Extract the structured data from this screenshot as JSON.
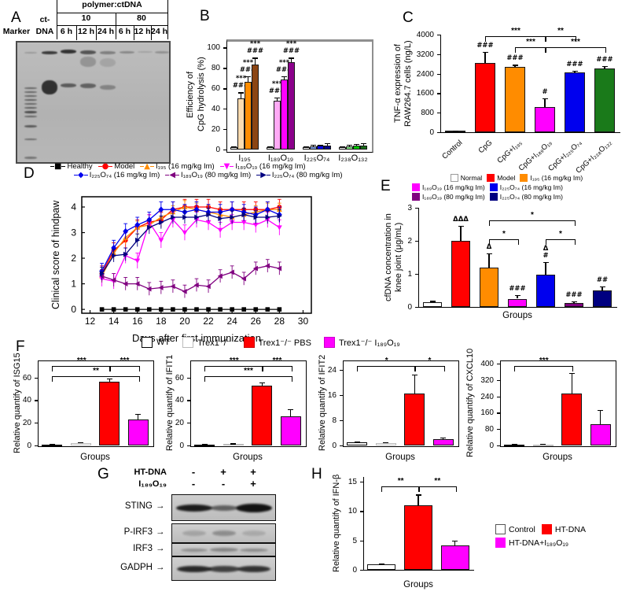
{
  "panels": {
    "A": "A",
    "B": "B",
    "C": "C",
    "D": "D",
    "E": "E",
    "F": "F",
    "G": "G",
    "H": "H"
  },
  "panelA": {
    "header_title": "polymer:ctDNA",
    "ratio_10": "10",
    "ratio_80": "80",
    "time_labels": [
      "6 h",
      "12 h",
      "24 h",
      "6 h",
      "12 h",
      "24 h"
    ],
    "marker_label": "Marker",
    "ct_top": "ct-",
    "ct_bottom": "DNA",
    "gel_lanes": [
      {
        "x": 17,
        "w": 16,
        "bands": [
          [
            12,
            2,
            0.2
          ],
          [
            57,
            2,
            0.5
          ],
          [
            62,
            2,
            0.5
          ],
          [
            67,
            2,
            0.5
          ],
          [
            72,
            2,
            0.55
          ],
          [
            77,
            2,
            0.5
          ],
          [
            82,
            2,
            0.55
          ],
          [
            87,
            3,
            0.65
          ],
          [
            93,
            2,
            0.5
          ],
          [
            105,
            3,
            0.55
          ],
          [
            122,
            2,
            0.45
          ],
          [
            145,
            3,
            0.4
          ]
        ]
      },
      {
        "x": 41,
        "w": 20,
        "bands": [
          [
            11,
            4,
            0.75
          ],
          [
            48,
            18,
            0.8
          ]
        ]
      },
      {
        "x": 65,
        "w": 20,
        "bands": [
          [
            9,
            5,
            0.8
          ],
          [
            52,
            5,
            0.55
          ]
        ]
      },
      {
        "x": 90,
        "w": 20,
        "bands": [
          [
            10,
            5,
            0.6
          ],
          [
            18,
            13,
            0.22
          ],
          [
            52,
            6,
            0.5
          ]
        ]
      },
      {
        "x": 115,
        "w": 20,
        "bands": [
          [
            11,
            4,
            0.35
          ],
          [
            20,
            11,
            0.12
          ],
          [
            54,
            6,
            0.3
          ]
        ]
      },
      {
        "x": 139,
        "w": 19,
        "bands": [
          [
            11,
            3,
            0.3
          ]
        ]
      },
      {
        "x": 162,
        "w": 19,
        "bands": [
          [
            11,
            2,
            0.15
          ]
        ]
      },
      {
        "x": 184,
        "w": 18,
        "bands": [
          [
            11,
            3,
            0.25
          ]
        ]
      }
    ]
  },
  "panelF": {
    "legend": [
      {
        "label": "WT",
        "color": "#ffffff",
        "border": "#000000"
      },
      {
        "label": "Trex1⁺/⁻",
        "color": "#ffffff",
        "border": "#bbbbbb"
      },
      {
        "label": "Trex1⁻/⁻ PBS",
        "color": "#ff0000",
        "border": "#cc0000"
      },
      {
        "label": "Trex1⁻/⁻ I₁₈₉O₁₉",
        "color": "#ff00ff",
        "border": "#cc00cc"
      }
    ]
  },
  "panelG": {
    "row1_label": "HT-DNA",
    "row1_values": [
      "-",
      "+",
      "+"
    ],
    "row2_label": "I₁₈₉O₁₉",
    "row2_values": [
      "-",
      "-",
      "+"
    ],
    "arrow": "→",
    "blots": [
      {
        "label": "STING",
        "bands": [
          {
            "lane": 0,
            "i": 0.92,
            "w": 46,
            "h": 9
          },
          {
            "lane": 1,
            "i": 0.55,
            "w": 34,
            "h": 7
          },
          {
            "lane": 2,
            "i": 0.97,
            "w": 46,
            "h": 11
          }
        ]
      },
      {
        "label": "P-IRF3",
        "bands": [
          {
            "lane": 0,
            "i": 0.18,
            "w": 30,
            "h": 7
          },
          {
            "lane": 1,
            "i": 0.3,
            "w": 30,
            "h": 7
          },
          {
            "lane": 2,
            "i": 0.15,
            "w": 30,
            "h": 7
          }
        ]
      },
      {
        "label": "IRF3",
        "bands": [
          {
            "lane": 0,
            "i": 0.3,
            "w": 34,
            "h": 4
          },
          {
            "lane": 1,
            "i": 0.35,
            "w": 36,
            "h": 5
          },
          {
            "lane": 2,
            "i": 0.32,
            "w": 36,
            "h": 4
          }
        ]
      },
      {
        "label": "GADPH",
        "bands": [
          {
            "lane": 0,
            "i": 0.85,
            "w": 44,
            "h": 8
          },
          {
            "lane": 1,
            "i": 0.72,
            "w": 40,
            "h": 8
          },
          {
            "lane": 2,
            "i": 0.8,
            "w": 42,
            "h": 8
          }
        ]
      }
    ]
  },
  "chart_data": [
    {
      "id": "B",
      "type": "bar",
      "grouped": true,
      "ylabel_lines": [
        "Efficiency of",
        "CpG hydrolysis (%)"
      ],
      "yticks": [
        0,
        20,
        40,
        60,
        80,
        100
      ],
      "ymax": 108,
      "categories": [
        "I₁₉₅",
        "I₁₈₉O₁₉",
        "I₂₂₅O₇₄",
        "I₂₃₈O₁₃₂"
      ],
      "values": [
        [
          2,
          50,
          66,
          83
        ],
        [
          2,
          48,
          69,
          86
        ],
        [
          2,
          3,
          3.5,
          4
        ],
        [
          2,
          3,
          3.5,
          4
        ]
      ],
      "errors": [
        [
          1,
          6,
          6,
          7
        ],
        [
          1,
          3,
          3,
          4
        ],
        [
          1,
          1.5,
          1.5,
          2
        ],
        [
          1,
          1.5,
          2,
          2
        ]
      ],
      "colors": [
        [
          "#ffffff",
          "#fcdcb0",
          "#ff8c00",
          "#8b4513"
        ],
        [
          "#ffffff",
          "#ffaaf5",
          "#ff00ff",
          "#8b008b"
        ],
        [
          "#ffffff",
          "#7d9ce0",
          "#0000ee",
          "#00008b"
        ],
        [
          "#ffffff",
          "#86e886",
          "#00c300",
          "#1a6b1a"
        ]
      ],
      "annotations": [
        [
          "",
          "***|###",
          "***|###",
          "***|###"
        ],
        [
          "",
          "***|###",
          "***|###",
          "***|###"
        ],
        [
          "",
          "",
          "",
          ""
        ],
        [
          "",
          "",
          "",
          ""
        ]
      ]
    },
    {
      "id": "C",
      "type": "bar",
      "ylabel_lines": [
        "TNF-α expression of",
        "RAW264.7 cells (ng/L)"
      ],
      "yticks": [
        0,
        800,
        1600,
        2400,
        3200,
        4000
      ],
      "ymax": 4000,
      "categories": [
        "Control",
        "CpG",
        "CpG+I₁₉₅",
        "CpG+I₁₈₉O₁₉",
        "CpG+I₂₂₅O₇₄",
        "CpG+I₂₃₈O₁₃₂"
      ],
      "values": [
        60,
        2850,
        2670,
        1020,
        2450,
        2620
      ],
      "errors": [
        20,
        450,
        90,
        380,
        60,
        80
      ],
      "colors": [
        "#d8d8d8",
        "#ff0000",
        "#ff8c00",
        "#ff00ff",
        "#0000ee",
        "#1a7a1a"
      ],
      "annotations": [
        "",
        "###",
        "###",
        "#",
        "###",
        "###"
      ],
      "brackets": [
        {
          "from": 1,
          "to": 3,
          "label": "***",
          "level": 2
        },
        {
          "from": 3,
          "to": 4,
          "label": "**",
          "level": 2
        },
        {
          "from": 2,
          "to": 3,
          "label": "***",
          "level": 1
        },
        {
          "from": 3,
          "to": 5,
          "label": "***",
          "level": 1
        }
      ]
    },
    {
      "id": "D",
      "type": "line",
      "xlabel": "Days after first immunization",
      "ylabel": "Clinical score of hindpaw",
      "xticks": [
        12,
        14,
        16,
        18,
        20,
        22,
        24,
        26,
        28,
        30
      ],
      "yticks": [
        0,
        1,
        2,
        3,
        4
      ],
      "xlim": [
        11.3,
        30.7
      ],
      "ylim": [
        -0.15,
        4.4
      ],
      "x": [
        13,
        14,
        15,
        16,
        17,
        18,
        19,
        20,
        21,
        22,
        23,
        24,
        25,
        26,
        27,
        28
      ],
      "series": [
        {
          "name": "Healthy",
          "color": "#000000",
          "marker": "square",
          "err": 0.04,
          "y": [
            0,
            0,
            0,
            0,
            0,
            0,
            0,
            0,
            0,
            0,
            0,
            0,
            0,
            0,
            0,
            0
          ]
        },
        {
          "name": "Model",
          "color": "#ff0000",
          "marker": "circle",
          "err": 0.3,
          "y": [
            1.4,
            2.3,
            2.7,
            3.2,
            3.4,
            3.5,
            3.9,
            4,
            4,
            4,
            3.9,
            3.9,
            3.9,
            3.9,
            3.9,
            4
          ]
        },
        {
          "name": "I₁₉₅ (16 mg/kg Im)",
          "color": "#ff8c00",
          "marker": "triangle-up",
          "err": 0.25,
          "y": [
            1.3,
            2.2,
            2.8,
            3.2,
            3.3,
            3.6,
            3.8,
            4,
            3.9,
            3.8,
            3.7,
            3.6,
            3.7,
            3.8,
            3.9,
            3.9
          ]
        },
        {
          "name": "I₁₈₉O₁₉ (16 mg/kg Im)",
          "color": "#ff00ff",
          "marker": "triangle-down",
          "err": 0.3,
          "y": [
            1.2,
            1.1,
            2.1,
            1.9,
            3.4,
            2.7,
            3.5,
            3,
            3.5,
            3.4,
            3.1,
            3.4,
            3.4,
            3.3,
            3.5,
            3.2
          ]
        },
        {
          "name": "I₂₂₅O₇₄ (16 mg/kg Im)",
          "color": "#0000ee",
          "marker": "diamond",
          "err": 0.3,
          "y": [
            1.5,
            2.4,
            3.05,
            3.3,
            3.5,
            3.9,
            3.9,
            3.8,
            3.9,
            3.8,
            3.8,
            3.9,
            3.8,
            3.7,
            3.9,
            3.7
          ]
        },
        {
          "name": "I₁₈₉O₁₉ (80 mg/kg Im)",
          "color": "#800080",
          "marker": "triangle-left",
          "err": 0.25,
          "y": [
            1.3,
            1.15,
            1,
            1,
            0.8,
            0.85,
            0.9,
            0.7,
            0.95,
            0.9,
            1.3,
            1.45,
            1.2,
            1.6,
            1.7,
            1.6
          ]
        },
        {
          "name": "I₂₂₅O₇₄ (80 mg/kg Im)",
          "color": "#000080",
          "marker": "triangle-right",
          "err": 0.25,
          "y": [
            1.4,
            2.1,
            2.15,
            2.7,
            3.2,
            3.4,
            3.6,
            3.6,
            3.6,
            3.7,
            3.55,
            3.6,
            3.7,
            3.6,
            3.6,
            3.65
          ]
        }
      ],
      "legend_rows": [
        [
          0,
          1,
          2,
          3
        ],
        [
          4,
          5,
          6
        ]
      ]
    },
    {
      "id": "E",
      "type": "bar",
      "ylabel_lines": [
        "cfDNA concentration in",
        "knee joint (μg/mL)"
      ],
      "xlabel": "Groups",
      "yticks": [
        0,
        1,
        2,
        3
      ],
      "ymax": 3,
      "values": [
        0.15,
        2,
        1.2,
        0.25,
        0.97,
        0.13,
        0.5
      ],
      "errors": [
        0.03,
        0.45,
        0.42,
        0.1,
        0.38,
        0.03,
        0.12
      ],
      "colors": [
        "#ffffff",
        "#ff0000",
        "#ff8c00",
        "#ff00ff",
        "#0000ee",
        "#800080",
        "#000080"
      ],
      "annotations": [
        "",
        "ΔΔΔ",
        "Δ",
        "###",
        "Δ|#",
        "###",
        "##"
      ],
      "brackets": [
        {
          "from": 2,
          "to": 3,
          "label": "*",
          "level": 1
        },
        {
          "from": 4,
          "to": 5,
          "label": "*",
          "level": 1
        },
        {
          "from": 2,
          "to": 5,
          "label": "*",
          "level": 2
        }
      ],
      "legend_rows": [
        [
          "Normal",
          "Model",
          "I₁₉₅ (16 mg/kg Im)"
        ],
        [
          "I₁₈₉O₁₉ (16 mg/kg Im)",
          "I₂₂₅O₇₄ (16 mg/kg  Im)"
        ],
        [
          "I₁₈₉O₁₉ (80 mg/kg Im)",
          "I₂₂₅O₇₄ (80 mg/kg Im)"
        ]
      ],
      "legend_colors": [
        [
          "#ffffff",
          "#ff0000",
          "#ff8c00"
        ],
        [
          "#ff00ff",
          "#0000ee"
        ],
        [
          "#800080",
          "#000080"
        ]
      ]
    },
    {
      "id": "F1",
      "type": "bar",
      "ylabel": "Relative quantify of ISG15",
      "xlabel": "Groups",
      "yticks": [
        0,
        20,
        40,
        60
      ],
      "ymax": 75,
      "values": [
        1,
        2,
        56,
        23
      ],
      "errors": [
        0.3,
        0.8,
        3,
        5
      ],
      "colors": [
        "#ffffff",
        "#ffffff",
        "#ff0000",
        "#ff00ff"
      ],
      "border_colors": [
        "#000000",
        "#bbbbbb",
        "#111111",
        "#111111"
      ],
      "brackets": [
        {
          "from": 0,
          "to": 2,
          "label": "***",
          "level": 2
        },
        {
          "from": 2,
          "to": 3,
          "label": "***",
          "level": 2
        },
        {
          "from": 0,
          "to": 3,
          "label": "**",
          "level": 1
        }
      ]
    },
    {
      "id": "F2",
      "type": "bar",
      "ylabel": "Relative quantify of IFIT1",
      "xlabel": "Groups",
      "yticks": [
        0,
        20,
        40,
        60
      ],
      "ymax": 75,
      "values": [
        1,
        1.5,
        53,
        26
      ],
      "errors": [
        0.2,
        0.3,
        2.5,
        6
      ],
      "colors": [
        "#ffffff",
        "#ffffff",
        "#ff0000",
        "#ff00ff"
      ],
      "border_colors": [
        "#000000",
        "#bbbbbb",
        "#111111",
        "#111111"
      ],
      "brackets": [
        {
          "from": 0,
          "to": 2,
          "label": "***",
          "level": 2
        },
        {
          "from": 2,
          "to": 3,
          "label": "***",
          "level": 2
        },
        {
          "from": 0,
          "to": 3,
          "label": "***",
          "level": 1
        }
      ]
    },
    {
      "id": "F3",
      "type": "bar",
      "ylabel": "Relative quantify of IFIT2",
      "xlabel": "Groups",
      "yticks": [
        0,
        8,
        16,
        24
      ],
      "ymax": 27,
      "values": [
        1,
        0.8,
        16.5,
        2
      ],
      "errors": [
        0.3,
        0.2,
        6,
        0.6
      ],
      "colors": [
        "#ffffff",
        "#ffffff",
        "#ff0000",
        "#ff00ff"
      ],
      "border_colors": [
        "#000000",
        "#bbbbbb",
        "#111111",
        "#111111"
      ],
      "brackets": [
        {
          "from": 0,
          "to": 2,
          "label": "*",
          "level": 2
        },
        {
          "from": 2,
          "to": 3,
          "label": "*",
          "level": 2
        }
      ]
    },
    {
      "id": "F4",
      "type": "bar",
      "ylabel": "Relative quantify of CXCL10",
      "xlabel": "Groups",
      "yticks": [
        0,
        80,
        160,
        240,
        320,
        400
      ],
      "ymax": 415,
      "values": [
        2,
        3,
        252,
        105
      ],
      "errors": [
        1,
        1,
        103,
        68
      ],
      "colors": [
        "#ffffff",
        "#ffffff",
        "#ff0000",
        "#ff00ff"
      ],
      "border_colors": [
        "#000000",
        "#bbbbbb",
        "#111111",
        "#111111"
      ],
      "brackets": [
        {
          "from": 0,
          "to": 2,
          "label": "***",
          "level": 2
        }
      ]
    },
    {
      "id": "H",
      "type": "bar",
      "ylabel": "Relative quantify of IFN-β",
      "xlabel": "Groups",
      "yticks": [
        0,
        5,
        10,
        15
      ],
      "ymax": 15.8,
      "values": [
        1,
        11,
        4.2
      ],
      "errors": [
        0.12,
        1.8,
        0.8
      ],
      "colors": [
        "#ffffff",
        "#ff0000",
        "#ff00ff"
      ],
      "brackets": [
        {
          "from": 0,
          "to": 1,
          "label": "**",
          "level": 1
        },
        {
          "from": 1,
          "to": 2,
          "label": "**",
          "level": 1
        }
      ],
      "legend": [
        {
          "label": "Control",
          "color": "#ffffff"
        },
        {
          "label": "HT-DNA",
          "color": "#ff0000"
        },
        {
          "label": "HT-DNA+I₁₈₉O₁₉",
          "color": "#ff00ff"
        }
      ]
    }
  ]
}
